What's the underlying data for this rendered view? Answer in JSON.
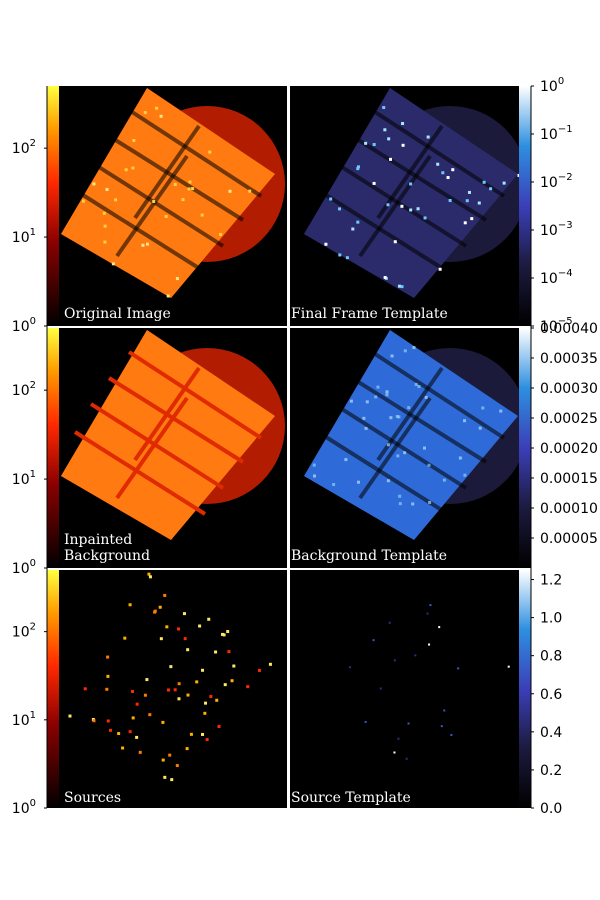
{
  "figure": {
    "background": "#ffffff",
    "panel_background": "#000000"
  },
  "chart_data": [
    {
      "type": "heatmap",
      "panel": "top-left",
      "label": "Original Image",
      "colormap": "autumn-dark (black-red-orange-yellow)",
      "scale": "log",
      "colorbar": {
        "position": "left",
        "range": [
          1,
          500
        ],
        "ticks": [
          {
            "label": "10",
            "exp": "0",
            "value": 1
          },
          {
            "label": "10",
            "exp": "1",
            "value": 10
          },
          {
            "label": "10",
            "exp": "2",
            "value": 100
          }
        ]
      },
      "content": "tilted detector array of 5x2 chips over circular field",
      "fill": "#ff7a10"
    },
    {
      "type": "heatmap",
      "panel": "top-right",
      "label": "Final Frame Template",
      "colormap": "dark-purple-blue-white",
      "scale": "log",
      "colorbar": {
        "position": "right",
        "range": [
          1e-05,
          1
        ],
        "ticks": [
          {
            "label": "10",
            "exp": "0",
            "value": 1
          },
          {
            "label": "10",
            "exp": "−1",
            "value": 0.1
          },
          {
            "label": "10",
            "exp": "−2",
            "value": 0.01
          },
          {
            "label": "10",
            "exp": "−3",
            "value": 0.001
          },
          {
            "label": "10",
            "exp": "−4",
            "value": 0.0001
          },
          {
            "label": "10",
            "exp": "−5",
            "value": 1e-05
          }
        ]
      },
      "fill": "#2b2a6a"
    },
    {
      "type": "heatmap",
      "panel": "middle-left",
      "label": "Inpainted Background",
      "label_lines": [
        "Inpainted",
        "Background"
      ],
      "colormap": "autumn-dark (black-red-orange-yellow)",
      "scale": "log",
      "colorbar": {
        "position": "left",
        "range": [
          1,
          500
        ],
        "ticks": [
          {
            "label": "10",
            "exp": "0",
            "value": 1
          },
          {
            "label": "10",
            "exp": "1",
            "value": 10
          },
          {
            "label": "10",
            "exp": "2",
            "value": 100
          }
        ]
      },
      "fill": "#ff7a10"
    },
    {
      "type": "heatmap",
      "panel": "middle-right",
      "label": "Background Template",
      "colormap": "dark-purple-blue-white",
      "scale": "linear",
      "colorbar": {
        "position": "right",
        "range": [
          0,
          0.0004
        ],
        "ticks": [
          "0.00040",
          "0.00035",
          "0.00030",
          "0.00025",
          "0.00020",
          "0.00015",
          "0.00010",
          "0.00005"
        ]
      },
      "fill": "#2f6bd8"
    },
    {
      "type": "heatmap",
      "panel": "bottom-left",
      "label": "Sources",
      "colormap": "autumn-dark (black-red-orange-yellow)",
      "scale": "log",
      "colorbar": {
        "position": "left",
        "range": [
          1,
          500
        ],
        "ticks": [
          {
            "label": "10",
            "exp": "0",
            "value": 1
          },
          {
            "label": "10",
            "exp": "1",
            "value": 10
          },
          {
            "label": "10",
            "exp": "2",
            "value": 100
          }
        ]
      },
      "content": "sparse point sources on black"
    },
    {
      "type": "heatmap",
      "panel": "bottom-right",
      "label": "Source Template",
      "colormap": "dark-purple-blue-white",
      "scale": "linear",
      "colorbar": {
        "position": "right",
        "range": [
          0,
          1.25
        ],
        "ticks": [
          "0.0",
          "0.2",
          "0.4",
          "0.6",
          "0.8",
          "1.0",
          "1.2"
        ]
      },
      "content": "very sparse faint sources on black"
    }
  ]
}
